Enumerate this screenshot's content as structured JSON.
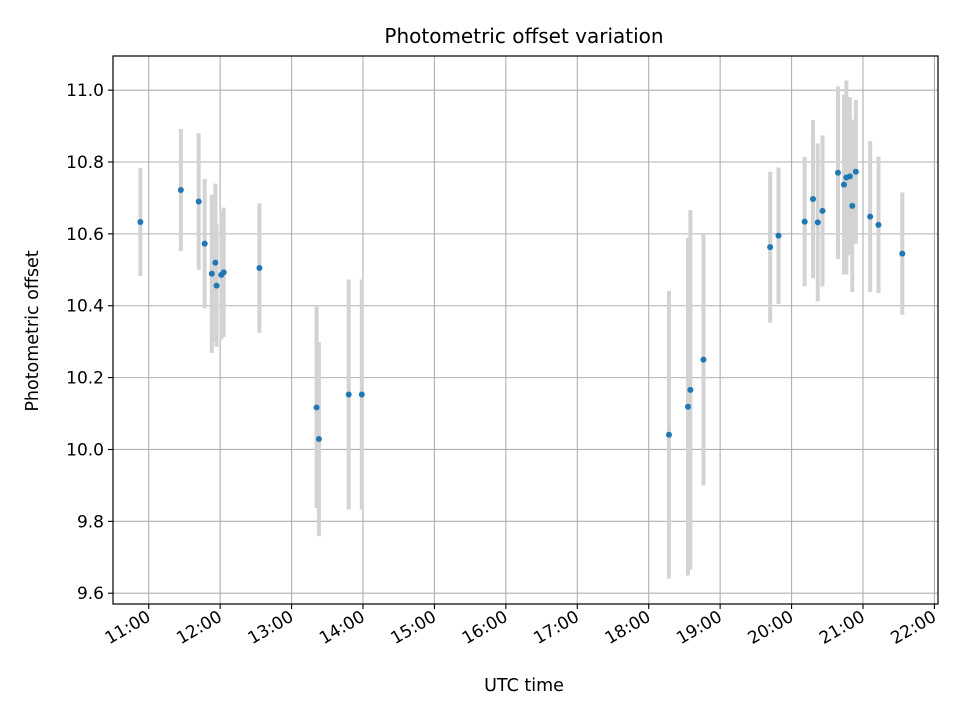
{
  "chart_data": {
    "type": "scatter",
    "title": "Photometric offset variation",
    "xlabel": "UTC time",
    "ylabel": "Photometric offset",
    "x_ticks": [
      "11:00",
      "12:00",
      "13:00",
      "14:00",
      "15:00",
      "16:00",
      "17:00",
      "18:00",
      "19:00",
      "20:00",
      "21:00",
      "22:00"
    ],
    "y_ticks": [
      "9.6",
      "9.8",
      "10.0",
      "10.2",
      "10.4",
      "10.6",
      "10.8",
      "11.0"
    ],
    "xlim": [
      "10:30",
      "22:03"
    ],
    "ylim": [
      9.57,
      11.095
    ],
    "grid": true,
    "error_bar_color": "#d3d3d3",
    "marker_color": "#1f77b4",
    "points": [
      {
        "x": "10:53",
        "y": 10.633,
        "err": 0.15
      },
      {
        "x": "11:27",
        "y": 10.722,
        "err": 0.17
      },
      {
        "x": "11:42",
        "y": 10.69,
        "err": 0.19
      },
      {
        "x": "11:47",
        "y": 10.573,
        "err": 0.18
      },
      {
        "x": "11:53",
        "y": 10.489,
        "err": 0.22
      },
      {
        "x": "11:56",
        "y": 10.52,
        "err": 0.22
      },
      {
        "x": "11:57",
        "y": 10.456,
        "err": 0.17
      },
      {
        "x": "12:01",
        "y": 10.486,
        "err": 0.18
      },
      {
        "x": "12:03",
        "y": 10.493,
        "err": 0.18
      },
      {
        "x": "12:33",
        "y": 10.505,
        "err": 0.18
      },
      {
        "x": "13:21",
        "y": 10.117,
        "err": 0.28
      },
      {
        "x": "13:23",
        "y": 10.029,
        "err": 0.27
      },
      {
        "x": "13:48",
        "y": 10.153,
        "err": 0.32
      },
      {
        "x": "13:59",
        "y": 10.153,
        "err": 0.32
      },
      {
        "x": "18:17",
        "y": 10.041,
        "err": 0.4
      },
      {
        "x": "18:33",
        "y": 10.119,
        "err": 0.47
      },
      {
        "x": "18:35",
        "y": 10.166,
        "err": 0.5
      },
      {
        "x": "18:46",
        "y": 10.25,
        "err": 0.35
      },
      {
        "x": "19:42",
        "y": 10.563,
        "err": 0.21
      },
      {
        "x": "19:49",
        "y": 10.595,
        "err": 0.19
      },
      {
        "x": "20:11",
        "y": 10.634,
        "err": 0.18
      },
      {
        "x": "20:18",
        "y": 10.697,
        "err": 0.22
      },
      {
        "x": "20:22",
        "y": 10.632,
        "err": 0.22
      },
      {
        "x": "20:26",
        "y": 10.664,
        "err": 0.21
      },
      {
        "x": "20:39",
        "y": 10.77,
        "err": 0.24
      },
      {
        "x": "20:44",
        "y": 10.737,
        "err": 0.25
      },
      {
        "x": "20:46",
        "y": 10.757,
        "err": 0.27
      },
      {
        "x": "20:49",
        "y": 10.76,
        "err": 0.22
      },
      {
        "x": "20:51",
        "y": 10.678,
        "err": 0.24
      },
      {
        "x": "20:54",
        "y": 10.773,
        "err": 0.2
      },
      {
        "x": "21:06",
        "y": 10.648,
        "err": 0.21
      },
      {
        "x": "21:13",
        "y": 10.625,
        "err": 0.19
      },
      {
        "x": "21:33",
        "y": 10.545,
        "err": 0.17
      }
    ]
  }
}
